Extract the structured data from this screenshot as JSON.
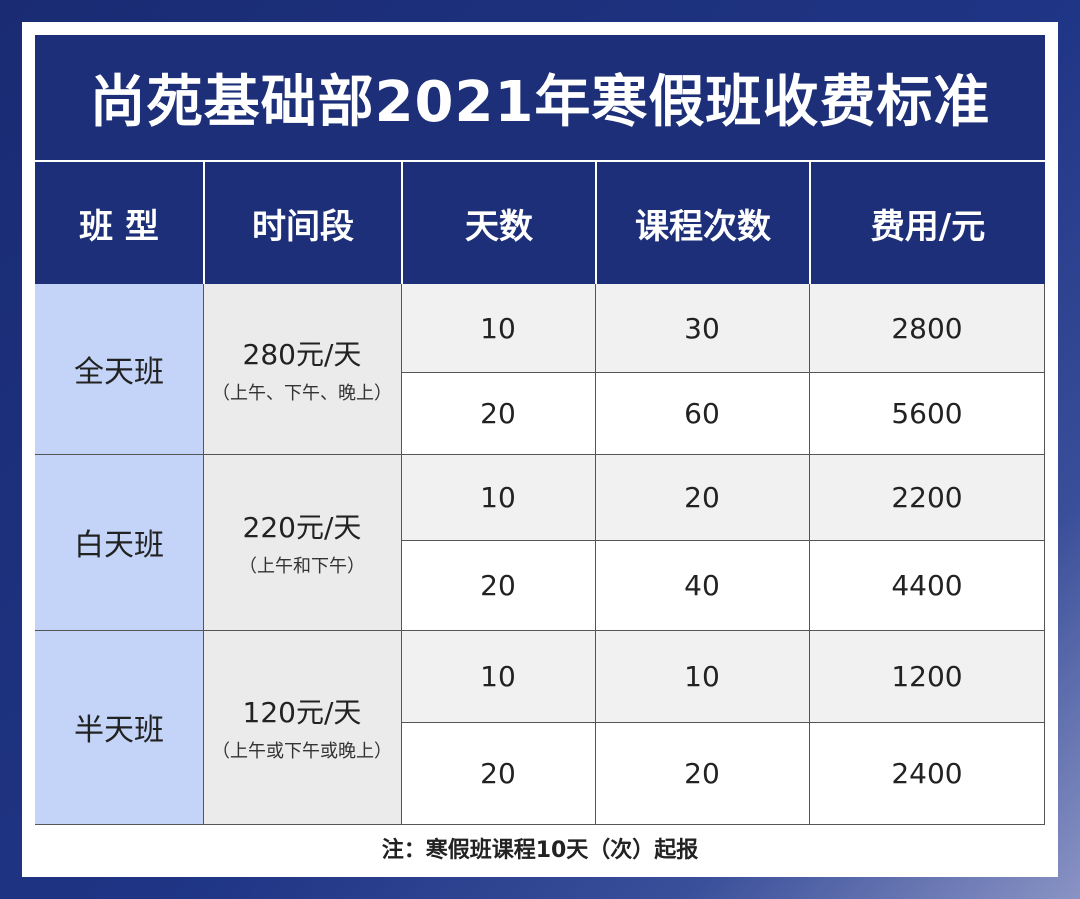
{
  "title": "尚苑基础部2021年寒假班收费标准",
  "headers": [
    "班 型",
    "时间段",
    "天数",
    "课程次数",
    "费用/元"
  ],
  "groups": [
    {
      "type": "全天班",
      "rate": "280元/天",
      "note": "（上午、下午、晚上）",
      "rows": [
        {
          "days": "10",
          "sessions": "30",
          "fee": "2800"
        },
        {
          "days": "20",
          "sessions": "60",
          "fee": "5600"
        }
      ]
    },
    {
      "type": "白天班",
      "rate": "220元/天",
      "note": "（上午和下午）",
      "rows": [
        {
          "days": "10",
          "sessions": "20",
          "fee": "2200"
        },
        {
          "days": "20",
          "sessions": "40",
          "fee": "4400"
        }
      ]
    },
    {
      "type": "半天班",
      "rate": "120元/天",
      "note": "（上午或下午或晚上）",
      "rows": [
        {
          "days": "10",
          "sessions": "10",
          "fee": "1200"
        },
        {
          "days": "20",
          "sessions": "20",
          "fee": "2400"
        }
      ]
    }
  ],
  "footnote": "注：寒假班课程10天（次）起报",
  "colors": {
    "header_bg": "#1d2f78",
    "type_col_bg": "#c4d4f8",
    "time_col_bg": "#ebebeb"
  }
}
